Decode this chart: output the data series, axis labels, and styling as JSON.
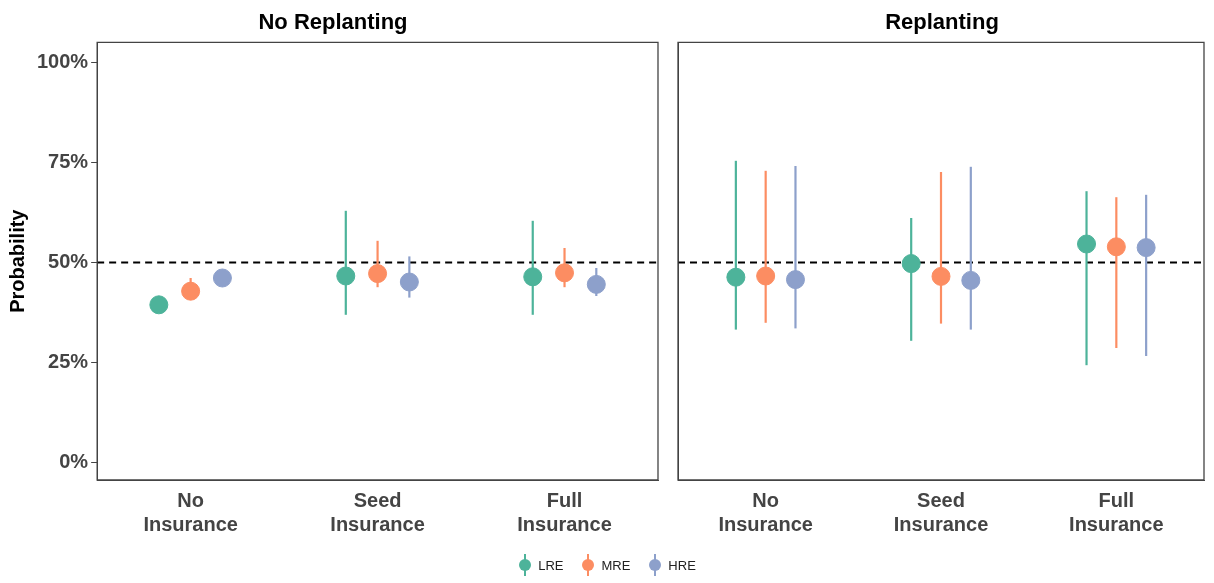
{
  "chart_data": [
    {
      "type": "scatter",
      "title": "No Replanting",
      "ylabel": "Probability",
      "categories": [
        "No Insurance",
        "Seed Insurance",
        "Full Insurance"
      ],
      "series": [
        {
          "name": "LRE",
          "color": "#4db39a",
          "values": [
            39.4,
            46.6,
            46.4
          ],
          "errors": [
            null,
            [
              36.9,
              62.9
            ],
            [
              36.9,
              60.4
            ]
          ]
        },
        {
          "name": "MRE",
          "color": "#fc8d62",
          "values": [
            42.8,
            47.2,
            47.4
          ],
          "errors": [
            [
              42.8,
              46.1
            ],
            [
              43.8,
              55.4
            ],
            [
              43.8,
              53.6
            ]
          ]
        },
        {
          "name": "HRE",
          "color": "#8da0cb",
          "values": [
            46.1,
            45.1,
            44.5
          ],
          "errors": [
            [
              46.1,
              48
            ],
            [
              41.2,
              51.5
            ],
            [
              41.6,
              48.6
            ]
          ]
        }
      ],
      "ylim": [
        -4.4,
        105
      ],
      "yticks": [
        {
          "value": 0,
          "label": "0%"
        },
        {
          "value": 25,
          "label": "25%"
        },
        {
          "value": 50,
          "label": "50%"
        },
        {
          "value": 75,
          "label": "75%"
        },
        {
          "value": 100,
          "label": "100%"
        }
      ],
      "ref_lines": [
        {
          "axis": "y",
          "value": 50,
          "line_style": "dashed",
          "color": "#000000"
        }
      ],
      "grid": false,
      "legend": "bottom",
      "marker": "circle"
    },
    {
      "type": "scatter",
      "title": "Replanting",
      "categories": [
        "No Insurance",
        "Seed Insurance",
        "Full Insurance"
      ],
      "series": [
        {
          "color": "#4db39a",
          "values": [
            46.3,
            49.7,
            54.6
          ],
          "errors": [
            [
              33.2,
              75.4
            ],
            [
              30.4,
              61.1
            ],
            [
              24.3,
              67.8
            ]
          ]
        },
        {
          "color": "#fc8d62",
          "values": [
            46.6,
            46.5,
            53.9
          ],
          "errors": [
            [
              34.9,
              72.9
            ],
            [
              34.7,
              72.6
            ],
            [
              28.6,
              66.3
            ]
          ]
        },
        {
          "color": "#8da0cb",
          "values": [
            45.7,
            45.5,
            53.7
          ],
          "errors": [
            [
              33.5,
              74.1
            ],
            [
              33.2,
              73.9
            ],
            [
              26.6,
              66.9
            ]
          ]
        }
      ],
      "ylim": [
        -4.4,
        105
      ],
      "ref_lines": [
        {
          "axis": "y",
          "value": 50,
          "line_style": "dashed",
          "color": "#000000"
        }
      ],
      "grid": false,
      "tick_labels": "x",
      "marker": "circle"
    }
  ]
}
